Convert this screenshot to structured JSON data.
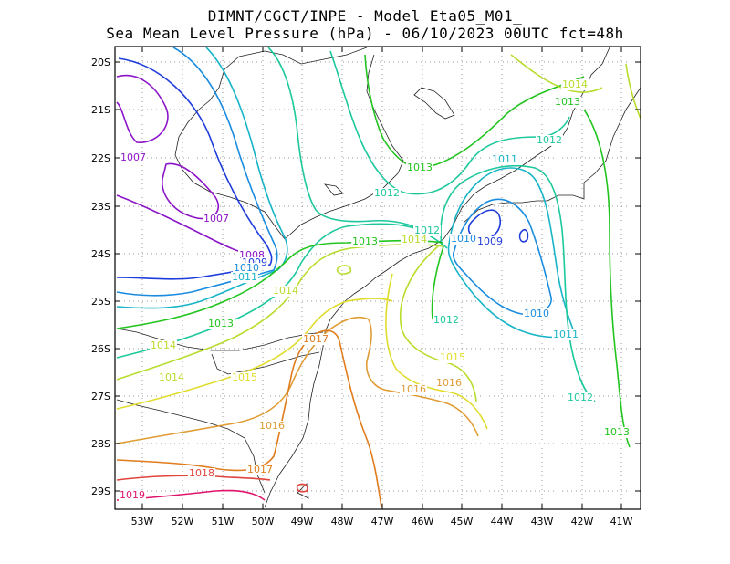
{
  "title": {
    "line1": "DIMNT/CGCT/INPE -  Model Eta05_M01_",
    "line2": "Sea Mean Level Pressure (hPa) - 06/10/2023 00UTC fct=48h"
  },
  "axes": {
    "lat_labels": [
      "20S",
      "21S",
      "22S",
      "23S",
      "24S",
      "25S",
      "26S",
      "27S",
      "28S",
      "29S"
    ],
    "lon_labels": [
      "53W",
      "52W",
      "51W",
      "50W",
      "49W",
      "48W",
      "47W",
      "46W",
      "45W",
      "44W",
      "43W",
      "42W",
      "41W"
    ]
  },
  "contour_labels": [
    {
      "text": "1014",
      "color": "#b8dc2c"
    },
    {
      "text": "1013",
      "color": "#22c41f"
    },
    {
      "text": "1012",
      "color": "#1cc89c"
    },
    {
      "text": "1011",
      "color": "#18b4c8"
    },
    {
      "text": "1013",
      "color": "#22c41f"
    },
    {
      "text": "1012",
      "color": "#1cc89c"
    },
    {
      "text": "1007",
      "color": "#8c14c8"
    },
    {
      "text": "1007",
      "color": "#8c14c8"
    },
    {
      "text": "1012",
      "color": "#1cc89c"
    },
    {
      "text": "1014",
      "color": "#b8dc2c"
    },
    {
      "text": "1013",
      "color": "#22c41f"
    },
    {
      "text": "1010",
      "color": "#1a8ce0"
    },
    {
      "text": "1009",
      "color": "#1e3cdc"
    },
    {
      "text": "1008",
      "color": "#8c14c8"
    },
    {
      "text": "1009",
      "color": "#1e3cdc"
    },
    {
      "text": "1010",
      "color": "#1a8ce0"
    },
    {
      "text": "1011",
      "color": "#18b4c8"
    },
    {
      "text": "1014",
      "color": "#b8dc2c"
    },
    {
      "text": "1013",
      "color": "#22c41f"
    },
    {
      "text": "1010",
      "color": "#1a8ce0"
    },
    {
      "text": "1011",
      "color": "#18b4c8"
    },
    {
      "text": "1012",
      "color": "#1cc89c"
    },
    {
      "text": "1017",
      "color": "#e07c1c"
    },
    {
      "text": "1014",
      "color": "#b8dc2c"
    },
    {
      "text": "1014",
      "color": "#b8dc2c"
    },
    {
      "text": "1015",
      "color": "#e0dc2c"
    },
    {
      "text": "1015",
      "color": "#e0dc2c"
    },
    {
      "text": "1016",
      "color": "#e09c34"
    },
    {
      "text": "1012",
      "color": "#1cc89c"
    },
    {
      "text": "1016",
      "color": "#e09c34"
    },
    {
      "text": "1013",
      "color": "#22c41f"
    },
    {
      "text": "1016",
      "color": "#e09c34"
    },
    {
      "text": "1017",
      "color": "#e07c1c"
    },
    {
      "text": "1018",
      "color": "#e0443c"
    },
    {
      "text": "1019",
      "color": "#e0146c"
    }
  ],
  "colors": {
    "p1007": "#8c14c8",
    "p1008": "#8c14c8",
    "p1009": "#1e3cdc",
    "p1010": "#1a8ce0",
    "p1011": "#18b4c8",
    "p1012": "#1cc89c",
    "p1013": "#22c41f",
    "p1014": "#b8dc2c",
    "p1015": "#e0dc2c",
    "p1016": "#e09c34",
    "p1017": "#e07c1c",
    "p1018": "#e0443c",
    "p1019": "#e0146c"
  }
}
